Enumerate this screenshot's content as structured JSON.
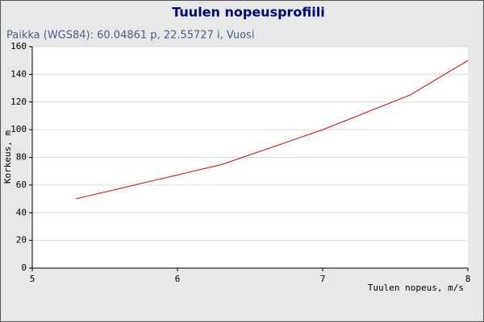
{
  "chart_data": {
    "type": "line",
    "title": "Tuulen nopeusprofiili",
    "subtitle": "Paikka (WGS84): 60.04861 p, 22.55727 i, Vuosi",
    "x_label": "Tuulen nopeus, m/s",
    "y_label": "Korkeus, m",
    "x": [
      5.3,
      6.31,
      7.0,
      7.6,
      8.0
    ],
    "series": [
      {
        "name": "Korkeus",
        "color": "#cc0000",
        "values": [
          50,
          75,
          100,
          125,
          150
        ]
      }
    ],
    "xlim": [
      5,
      8
    ],
    "xticks": [
      5,
      6,
      7,
      8
    ],
    "ylim": [
      0,
      160
    ],
    "yticks": [
      0,
      20,
      40,
      60,
      80,
      100,
      120,
      140,
      160
    ],
    "grid": true
  }
}
